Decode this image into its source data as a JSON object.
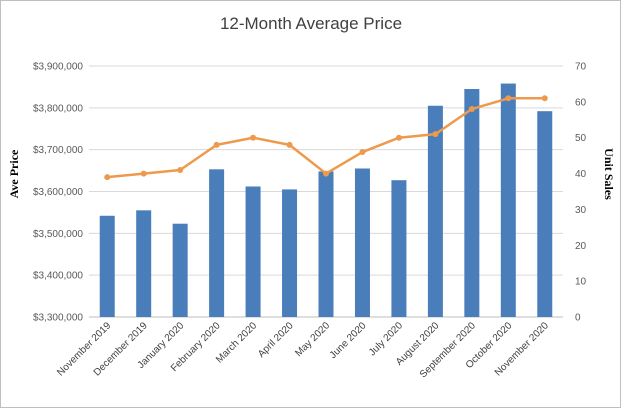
{
  "chart_data": {
    "type": "bar",
    "title": "12-Month Average Price",
    "xlabel": "",
    "ylabel": "Ave Price",
    "y2label": "Unit Sales",
    "ylim": [
      3300000,
      3900000
    ],
    "y2lim": [
      0,
      70
    ],
    "yticks": [
      3300000,
      3400000,
      3500000,
      3600000,
      3700000,
      3800000,
      3900000
    ],
    "ytick_labels": [
      "$3,300,000",
      "$3,400,000",
      "$3,500,000",
      "$3,600,000",
      "$3,700,000",
      "$3,800,000",
      "$3,900,000"
    ],
    "y2ticks": [
      0,
      10,
      20,
      30,
      40,
      50,
      60,
      70
    ],
    "y2tick_labels": [
      "0",
      "10",
      "20",
      "30",
      "40",
      "50",
      "60",
      "70"
    ],
    "grid": true,
    "legend": "none",
    "categories": [
      "November 2019",
      "December 2019",
      "January 2020",
      "February 2020",
      "March 2020",
      "April 2020",
      "May 2020",
      "June 2020",
      "July 2020",
      "August 2020",
      "September 2020",
      "October 2020",
      "November 2020"
    ],
    "series": [
      {
        "type": "bar",
        "axis": "left",
        "color": "#4a7ebb",
        "values": [
          3542000,
          3555000,
          3523000,
          3653000,
          3612000,
          3605000,
          3648000,
          3655000,
          3627000,
          3805000,
          3845000,
          3858000,
          3792000
        ]
      },
      {
        "type": "line",
        "axis": "right",
        "color": "#ed9a4c",
        "values": [
          39,
          40,
          41,
          48,
          50,
          48,
          40,
          46,
          50,
          51,
          58,
          61,
          61
        ]
      }
    ]
  }
}
